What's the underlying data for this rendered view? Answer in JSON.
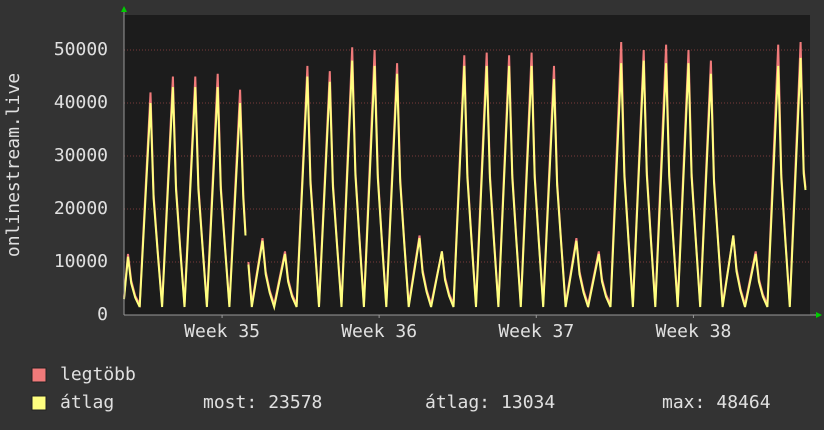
{
  "chart_data": {
    "type": "line",
    "ylabel": "onlinestream.live",
    "x": [
      0,
      0.18,
      0.32,
      0.5,
      0.7,
      1.18,
      1.32,
      1.5,
      1.7,
      2.18,
      2.32,
      2.5,
      2.7,
      3.18,
      3.32,
      3.5,
      3.7,
      4.18,
      4.32,
      4.5,
      4.7,
      5.18,
      5.32,
      5.42,
      5.48,
      5.55,
      5.7,
      6.18,
      6.32,
      6.5,
      6.7,
      7.18,
      7.32,
      7.5,
      7.7,
      8.18,
      8.32,
      8.5,
      8.7,
      9.18,
      9.32,
      9.5,
      9.7,
      10.18,
      10.32,
      10.5,
      10.7,
      11.18,
      11.32,
      11.5,
      11.7,
      12.18,
      12.32,
      12.5,
      12.7,
      13.18,
      13.32,
      13.5,
      13.7,
      14.18,
      14.32,
      14.5,
      14.7,
      15.18,
      15.32,
      15.5,
      15.7,
      16.18,
      16.32,
      16.5,
      16.7,
      17.18,
      17.32,
      17.5,
      17.7,
      18.18,
      18.32,
      18.5,
      18.7,
      19.18,
      19.32,
      19.5,
      19.7,
      20.18,
      20.32,
      20.5,
      20.7,
      21.18,
      21.32,
      21.5,
      21.7,
      22.18,
      22.32,
      22.5,
      22.7,
      23.18,
      23.32,
      23.5,
      23.7,
      24.18,
      24.32,
      24.5,
      24.7,
      25.18,
      25.32,
      25.5,
      25.7,
      26.18,
      26.32,
      26.5,
      26.7,
      27.18,
      27.32,
      27.5,
      27.7,
      28.18,
      28.32,
      28.5,
      28.7,
      29.18,
      29.32,
      29.5,
      29.7,
      30.18,
      30.32,
      30.4
    ],
    "series": [
      {
        "name": "legtöbb",
        "color": "#f07a7a",
        "values": [
          3300,
          11500,
          6500,
          3600,
          2000,
          42000,
          22800,
          12400,
          2000,
          45000,
          24450,
          13300,
          2000,
          45000,
          24450,
          13300,
          2000,
          45500,
          24450,
          13300,
          2000,
          42500,
          22800,
          15500,
          null,
          10000,
          2000,
          14500,
          8200,
          4600,
          2000,
          12000,
          6800,
          3850,
          2000,
          47000,
          25550,
          13900,
          2000,
          46000,
          25000,
          13600,
          2000,
          50500,
          27200,
          14800,
          2000,
          50000,
          26650,
          14500,
          2000,
          47500,
          25800,
          14050,
          2000,
          15000,
          8500,
          4750,
          2000,
          12000,
          7100,
          4000,
          2000,
          49000,
          26650,
          14500,
          2000,
          49500,
          26650,
          14500,
          2000,
          49000,
          26650,
          14500,
          2000,
          49500,
          26650,
          14500,
          2000,
          47000,
          25300,
          13750,
          2000,
          14500,
          8200,
          4600,
          2000,
          12000,
          6800,
          3850,
          2000,
          51500,
          26900,
          14650,
          2000,
          50000,
          27200,
          14800,
          2000,
          51000,
          26900,
          14650,
          2000,
          50000,
          26900,
          14650,
          2000,
          48000,
          25800,
          14050,
          2000,
          15000,
          8750,
          4900,
          2000,
          12000,
          6800,
          3850,
          2000,
          51000,
          26650,
          14500,
          2000,
          51500,
          27500,
          24000
        ]
      },
      {
        "name": "átlag",
        "color": "#ffff80",
        "values": [
          3000,
          11000,
          6000,
          3300,
          1500,
          40000,
          22000,
          12000,
          1500,
          43000,
          23650,
          12900,
          1500,
          43000,
          23650,
          12900,
          1500,
          43000,
          23650,
          12900,
          1500,
          40000,
          22000,
          15000,
          null,
          9500,
          1500,
          14000,
          7700,
          4200,
          1500,
          11500,
          6300,
          3450,
          1500,
          45000,
          24750,
          13500,
          1500,
          44000,
          24200,
          13200,
          1500,
          48000,
          26400,
          14400,
          1500,
          47000,
          25850,
          14100,
          1500,
          45500,
          25000,
          13650,
          1500,
          14500,
          8000,
          4350,
          1500,
          12000,
          6600,
          3600,
          1500,
          47000,
          25850,
          14100,
          1500,
          47000,
          25850,
          14100,
          1500,
          47000,
          25850,
          14100,
          1500,
          47000,
          25850,
          14100,
          1500,
          44500,
          24500,
          13350,
          1500,
          14000,
          7700,
          4200,
          1500,
          11500,
          6300,
          3450,
          1500,
          47500,
          26100,
          14250,
          1500,
          48000,
          26400,
          14400,
          1500,
          47500,
          26100,
          14250,
          1500,
          47500,
          26100,
          14250,
          1500,
          45500,
          25000,
          13650,
          1500,
          15000,
          8250,
          4500,
          1500,
          11500,
          6300,
          3450,
          1500,
          47000,
          25850,
          14100,
          1500,
          48500,
          26700,
          23578
        ]
      }
    ],
    "xlim": [
      0,
      30.6
    ],
    "xticks": [
      {
        "value": 4.375,
        "label": "Week 35"
      },
      {
        "value": 11.38,
        "label": "Week 36"
      },
      {
        "value": 18.39,
        "label": "Week 37"
      },
      {
        "value": 25.4,
        "label": "Week 38"
      }
    ],
    "ylim": [
      0,
      56600
    ],
    "yticks": [
      0,
      10000,
      20000,
      30000,
      40000,
      50000
    ],
    "grid": true,
    "stats": [
      {
        "label": "most:",
        "value": 23578
      },
      {
        "label": "átlag:",
        "value": 13034
      },
      {
        "label": "max:",
        "value": 48464
      }
    ]
  }
}
